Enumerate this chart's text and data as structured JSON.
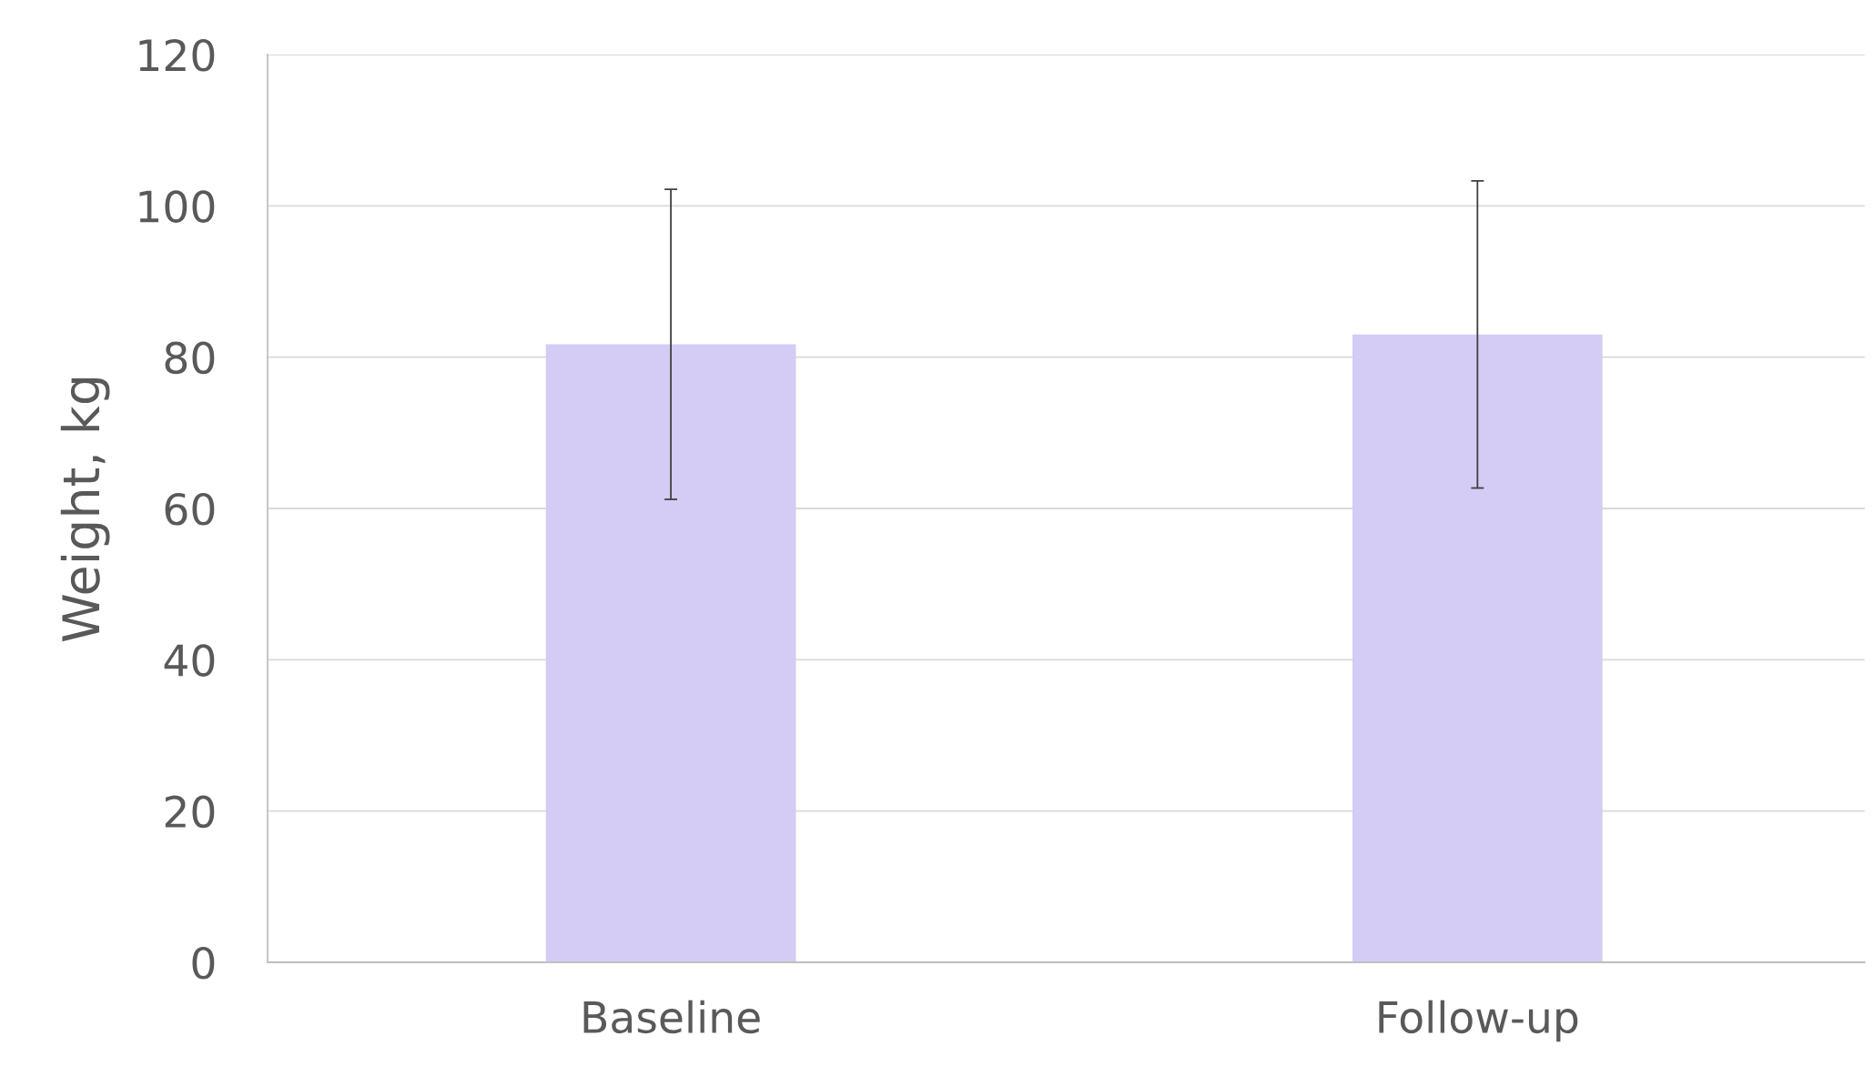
{
  "chart_data": {
    "type": "bar",
    "ylabel": "Weight, kg",
    "categories": [
      "Baseline",
      "Follow-up"
    ],
    "values": [
      81.7,
      83.0
    ],
    "errors": [
      20.5,
      20.3
    ],
    "color": "#d4ccf4",
    "ylim": [
      0,
      120
    ],
    "yticks": [
      0,
      20,
      40,
      60,
      80,
      100,
      120
    ],
    "grid": "y"
  }
}
